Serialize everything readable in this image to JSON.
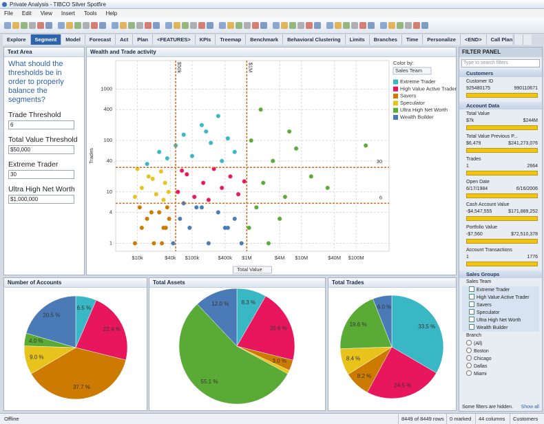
{
  "window": {
    "title": "Private Analysis - TIBCO Silver Spotfire"
  },
  "menu": [
    "File",
    "Edit",
    "View",
    "Insert",
    "Tools",
    "Help"
  ],
  "tabs": [
    "Explore",
    "Segment",
    "Model",
    "Forecast",
    "Act",
    "Plan",
    "<FEATURES>",
    "KPIs",
    "Treemap",
    "Benchmark",
    "Behavioral Clustering",
    "Limits",
    "Branches",
    "Time",
    "Personalize",
    "<END>",
    "Call Plan"
  ],
  "active_tab": 1,
  "text_area": {
    "title": "Text Area",
    "question": "What should the thresholds be in order to properly balance the segments?",
    "fields": [
      {
        "label": "Trade Threshold",
        "value": "6"
      },
      {
        "label": "Total Value Threshold",
        "value": "$50,000"
      },
      {
        "label": "Extreme Trader",
        "value": "30"
      },
      {
        "label": "Ultra High Net Worth",
        "value": "$1,000,000"
      }
    ]
  },
  "chart_data": [
    {
      "type": "scatter",
      "title": "Wealth and Trade activity",
      "x_label": "Total Value",
      "y_label": "Trades",
      "color_by_label": "Color by:",
      "color_by": "Sales Team",
      "xscale": "log",
      "yscale": "log",
      "grid": true,
      "xlim": [
        4000,
        400000000
      ],
      "ylim": [
        0.7,
        3600
      ],
      "xticks": [
        {
          "value": 10000,
          "label": "$10k"
        },
        {
          "value": 40000,
          "label": "$40k"
        },
        {
          "value": 100000,
          "label": "$100k"
        },
        {
          "value": 400000,
          "label": "$400k"
        },
        {
          "value": 1000000,
          "label": "$1M"
        },
        {
          "value": 4000000,
          "label": "$4M"
        },
        {
          "value": 10000000,
          "label": "$10M"
        },
        {
          "value": 40000000,
          "label": "$40M"
        },
        {
          "value": 100000000,
          "label": "$100M"
        }
      ],
      "yticks": [
        1,
        4,
        10,
        40,
        100,
        400,
        1000
      ],
      "reference_lines": {
        "x": [
          {
            "value": 50000,
            "label": "$50k"
          },
          {
            "value": 1000000,
            "label": "$1M"
          }
        ],
        "y": [
          30,
          6
        ]
      },
      "reference_color": "#d2691e",
      "series": [
        {
          "name": "Extreme Trader",
          "color": "#3ab7c5",
          "x": [
            15000,
            25000,
            35000,
            50000,
            70000,
            100000,
            150000,
            220000,
            300000,
            450000,
            600000,
            350000,
            180000
          ],
          "y": [
            35,
            60,
            45,
            80,
            130,
            50,
            200,
            90,
            300,
            110,
            60,
            40,
            150
          ]
        },
        {
          "name": "High Value Active Trader",
          "color": "#e8175d",
          "x": [
            55000,
            80000,
            110000,
            160000,
            250000,
            350000,
            500000,
            700000,
            900000,
            65000,
            200000
          ],
          "y": [
            10,
            22,
            8,
            15,
            28,
            12,
            20,
            9,
            16,
            26,
            7
          ]
        },
        {
          "name": "Savers",
          "color": "#cc7a00",
          "x": [
            9000,
            12000,
            15000,
            20000,
            25000,
            30000,
            35000,
            38000,
            11000,
            18000,
            28000,
            33000
          ],
          "y": [
            1,
            2,
            3,
            1,
            4,
            2,
            5,
            3,
            5,
            4,
            1,
            2
          ]
        },
        {
          "name": "Speculator",
          "color": "#e8c31c",
          "x": [
            9000,
            12000,
            16000,
            22000,
            27000,
            32000,
            37000,
            10000,
            19000,
            30000
          ],
          "y": [
            8,
            12,
            20,
            9,
            25,
            15,
            10,
            28,
            18,
            7
          ]
        },
        {
          "name": "Ultra High Net Worth",
          "color": "#5aab36",
          "x": [
            1100000,
            1500000,
            2000000,
            3000000,
            5000000,
            8000000,
            15000000,
            30000000,
            150000000,
            1200000,
            2500000,
            4000000,
            6000000,
            1800000
          ],
          "y": [
            2,
            5,
            15,
            40,
            8,
            70,
            20,
            12,
            80,
            100,
            1,
            3,
            150,
            400
          ]
        },
        {
          "name": "Wealth Builder",
          "color": "#4b7bb6",
          "x": [
            45000,
            60000,
            90000,
            120000,
            200000,
            300000,
            450000,
            600000,
            800000,
            70000,
            150000,
            400000
          ],
          "y": [
            1,
            3,
            2,
            5,
            1,
            4,
            2,
            3,
            1,
            6,
            5,
            2
          ]
        }
      ]
    },
    {
      "type": "pie",
      "title": "Number of Accounts",
      "values": [
        6.5,
        22.4,
        37.7,
        9,
        4,
        20.5
      ],
      "value_labels": [
        "6.5 %",
        "22.4 %",
        "37.7 %",
        "9.0 %",
        "4.0 %",
        "20.5 %"
      ],
      "colors": [
        "#3ab7c5",
        "#e8175d",
        "#cc7a00",
        "#e8c31c",
        "#5aab36",
        "#4b7bb6"
      ]
    },
    {
      "type": "pie",
      "title": "Total Assets",
      "values": [
        8.3,
        20.6,
        3,
        1,
        55.1,
        12
      ],
      "value_labels": [
        "8.3 %",
        "20.6 %",
        "3.0 %",
        null,
        "55.1 %",
        "12.0 %"
      ],
      "colors": [
        "#3ab7c5",
        "#e8175d",
        "#cc7a00",
        "#e8c31c",
        "#5aab36",
        "#4b7bb6"
      ]
    },
    {
      "type": "pie",
      "title": "Total Trades",
      "values": [
        33.5,
        24.5,
        8.2,
        8.4,
        19.6,
        6
      ],
      "value_labels": [
        "33.5 %",
        "24.5 %",
        "8.2 %",
        "8.4 %",
        "19.6 %",
        "6.0 %"
      ],
      "colors": [
        "#3ab7c5",
        "#e8175d",
        "#cc7a00",
        "#e8c31c",
        "#5aab36",
        "#4b7bb6"
      ]
    }
  ],
  "filter_panel": {
    "title": "FILTER PANEL",
    "search": "Type to search filters",
    "customers": {
      "title": "Customers",
      "filters": [
        {
          "name": "Customer ID",
          "min": "925480175",
          "max": "990110671"
        }
      ]
    },
    "account_data": {
      "title": "Account Data",
      "filters": [
        {
          "name": "Total Value",
          "min": "$7k",
          "max": "$244M"
        },
        {
          "name": "Total Value Previous P...",
          "min": "$6,479",
          "max": "$241,273,076"
        },
        {
          "name": "Trades",
          "min": "1",
          "max": "2664"
        },
        {
          "name": "Open Date",
          "min": "6/17/1984",
          "max": "6/16/2006"
        },
        {
          "name": "Cash Account Value",
          "min": "-$4,547,555",
          "max": "$171,889,252"
        },
        {
          "name": "Portfolio Value",
          "min": "-$7,560",
          "max": "$72,510,378"
        },
        {
          "name": "Account Transactions",
          "min": "1",
          "max": "1776"
        }
      ]
    },
    "sales_groups": {
      "title": "Sales Groups",
      "sales_team": {
        "title": "Sales Team",
        "options": [
          "Extreme Trader",
          "High Value Active Trader",
          "Savers",
          "Speculator",
          "Ultra High Net Worth",
          "Wealth Builder"
        ]
      },
      "branch": {
        "title": "Branch",
        "options": [
          "(All)",
          "Boston",
          "Chicago",
          "Dallas",
          "Miami"
        ]
      }
    },
    "footer": "Some filters are hidden.",
    "show_all": "Show all"
  },
  "status_bar": {
    "state": "Offline",
    "rows": "8449 of 8449 rows",
    "marked": "0 marked",
    "columns": "44 columns",
    "table": "Customers"
  }
}
